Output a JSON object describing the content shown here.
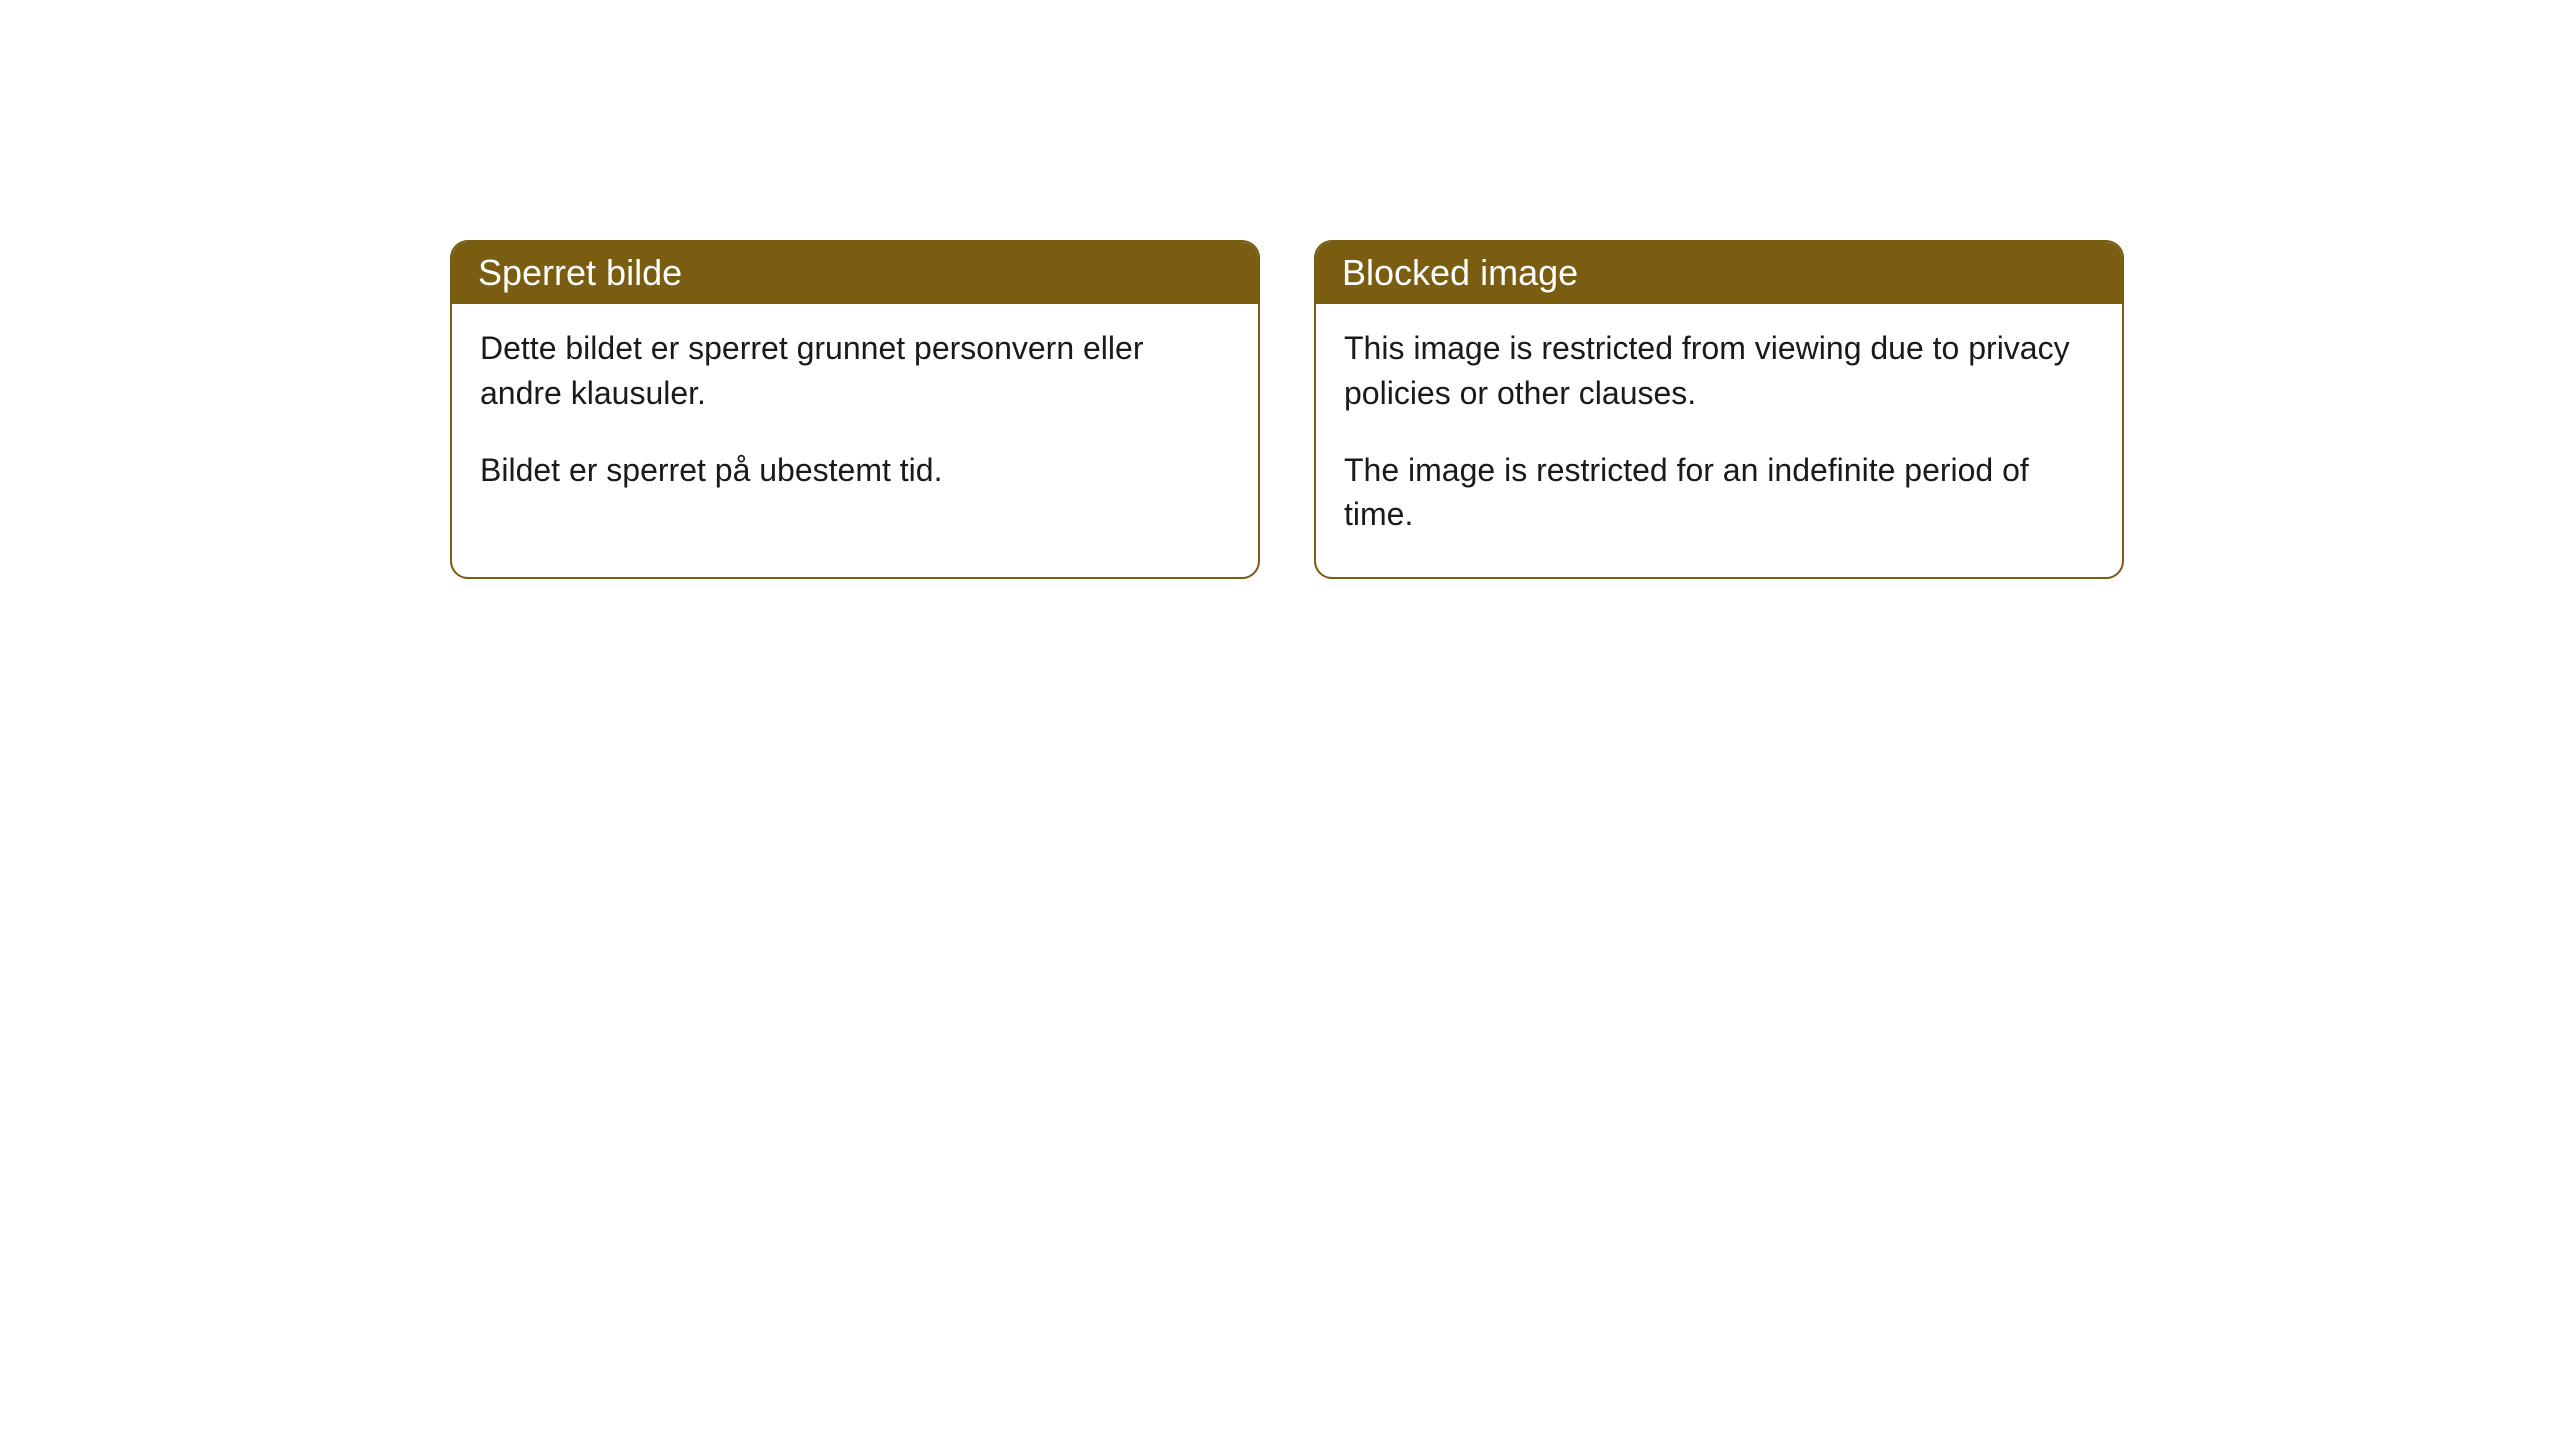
{
  "cards": [
    {
      "title": "Sperret bilde",
      "paragraph1": "Dette bildet er sperret grunnet personvern eller andre klausuler.",
      "paragraph2": "Bildet er sperret på ubestemt tid."
    },
    {
      "title": "Blocked image",
      "paragraph1": "This image is restricted from viewing due to privacy policies or other clauses.",
      "paragraph2": "The image is restricted for an indefinite period of time."
    }
  ],
  "styling": {
    "header_background": "#7a5d10",
    "header_text_color": "#ffffff",
    "border_color": "#7a5d10",
    "body_background": "#ffffff",
    "body_text_color": "#1a1a1a",
    "border_radius": 18,
    "title_fontsize": 36,
    "body_fontsize": 32
  }
}
